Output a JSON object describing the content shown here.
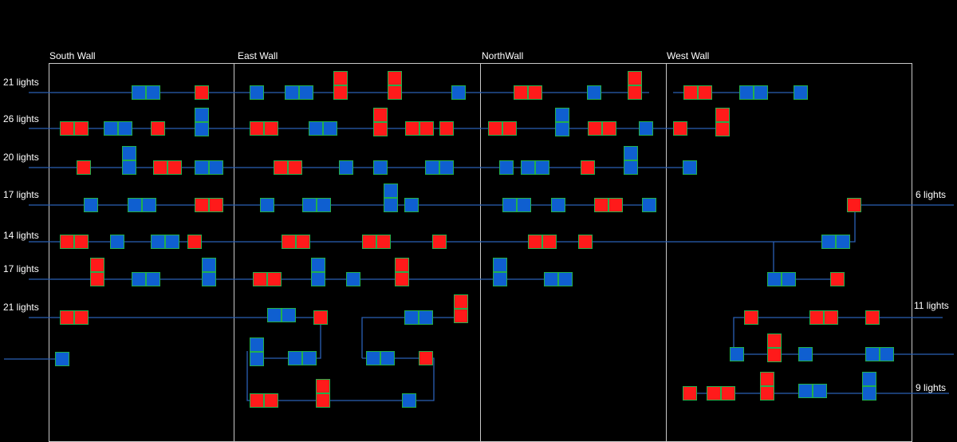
{
  "colors": {
    "background": "#000000",
    "wire": "#2a5fb5",
    "wall_border": "#c8c8c8",
    "light_red": "#ff1a1a",
    "light_blue": "#0f5fd0",
    "light_outline": "#22b04b",
    "text": "#ffffff"
  },
  "walls": [
    {
      "label": "South Wall"
    },
    {
      "label": "East Wall"
    },
    {
      "label": "NorthWall"
    },
    {
      "label": "West Wall"
    }
  ],
  "runs": [
    {
      "label": "21 lights",
      "side": "left"
    },
    {
      "label": "26 lights",
      "side": "left"
    },
    {
      "label": "20 lights",
      "side": "left"
    },
    {
      "label": "17 lights",
      "side": "left"
    },
    {
      "label": "14 lights",
      "side": "left"
    },
    {
      "label": "17 lights",
      "side": "left"
    },
    {
      "label": "21 lights",
      "side": "left"
    },
    {
      "label": "6 lights",
      "side": "right"
    },
    {
      "label": "11 lights",
      "side": "right"
    },
    {
      "label": "9 lights",
      "side": "right"
    }
  ],
  "light_colors": {
    "R": "red",
    "B": "blue"
  }
}
